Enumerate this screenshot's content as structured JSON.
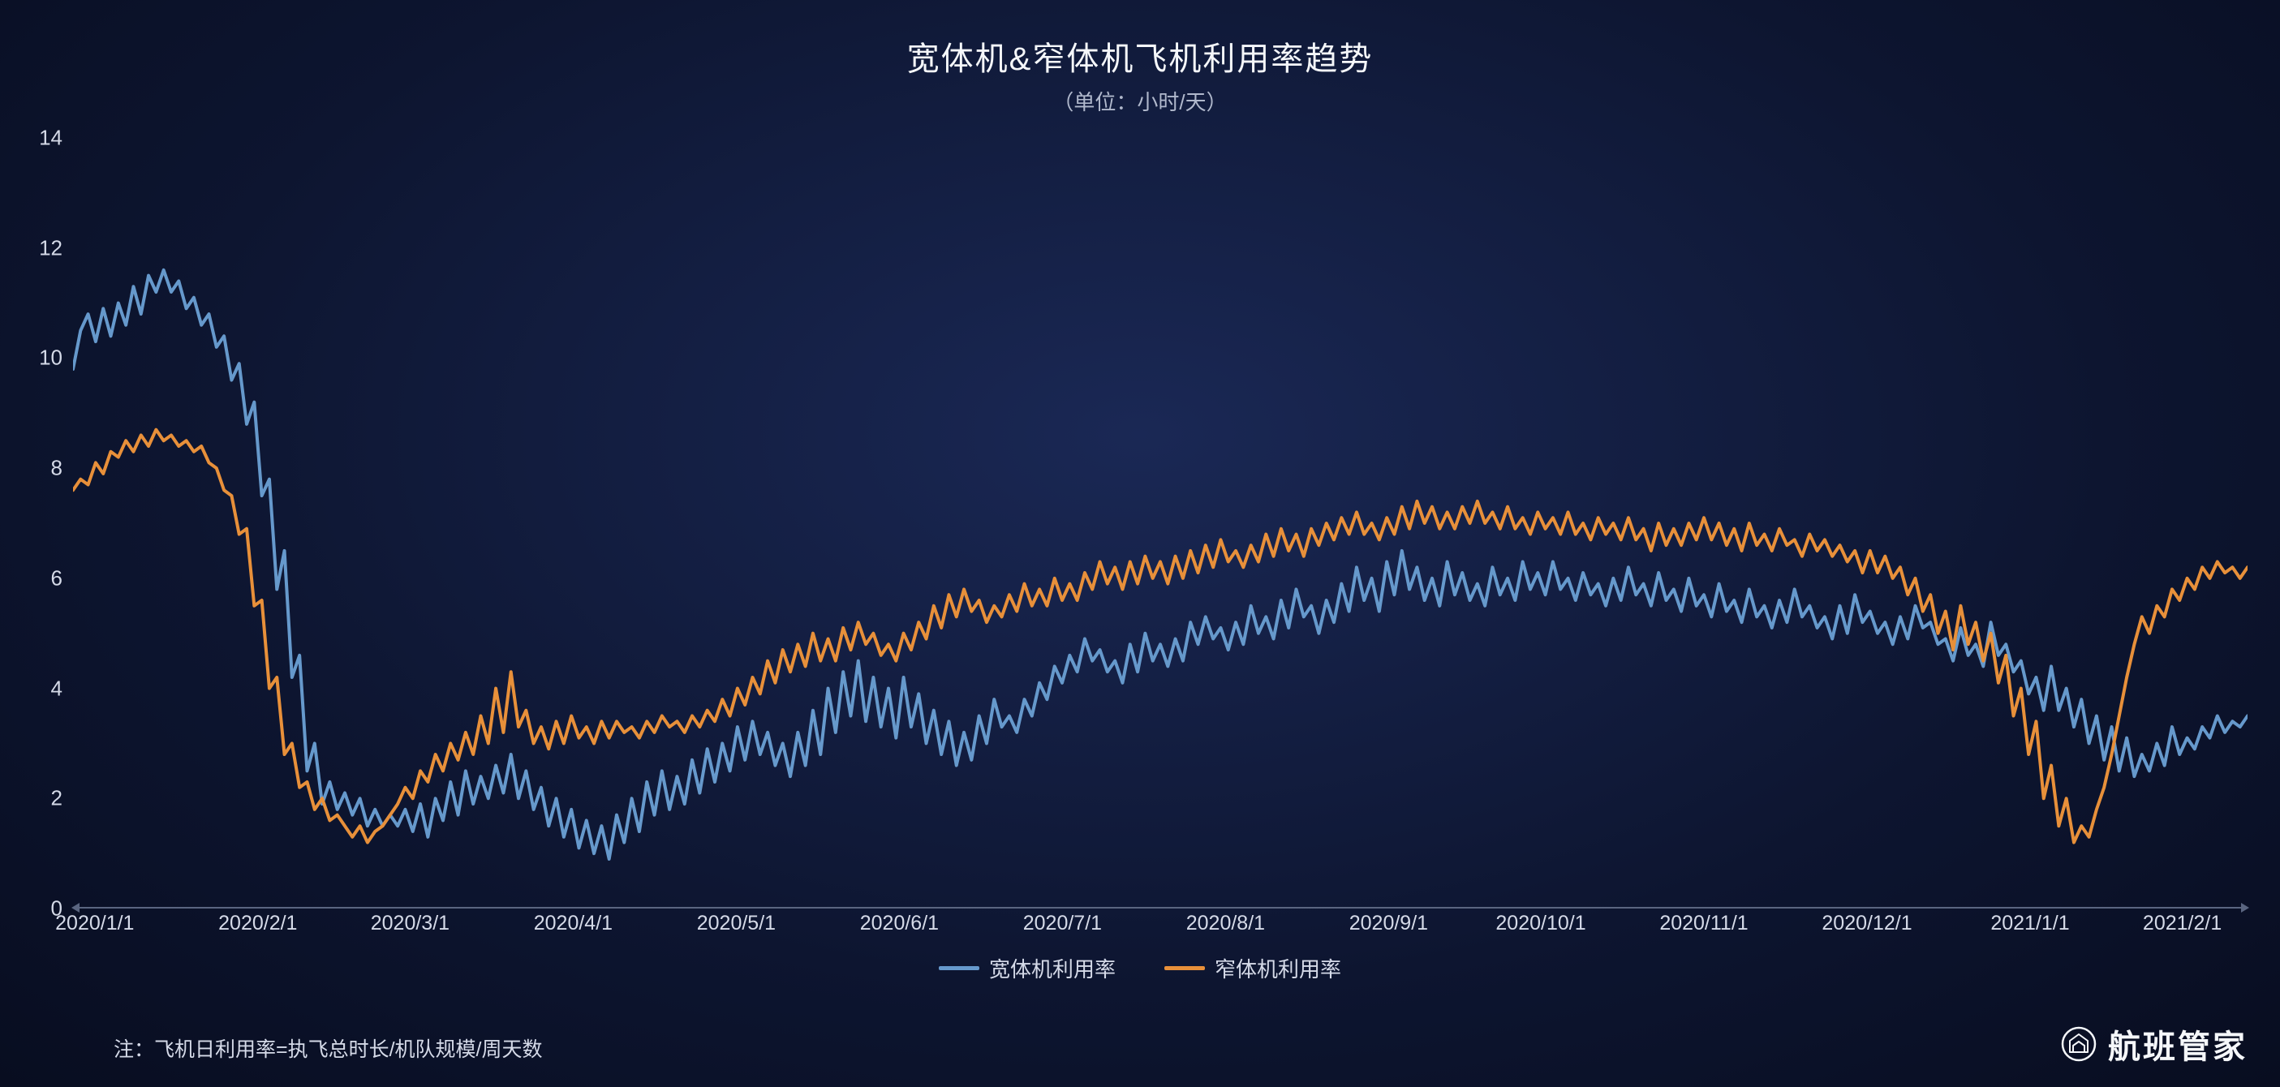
{
  "chart": {
    "type": "line",
    "title": "宽体机&窄体机飞机利用率趋势",
    "subtitle": "（单位：小时/天）",
    "title_fontsize": 40,
    "subtitle_fontsize": 26,
    "background_gradient": [
      "#1a2855",
      "#0d1530",
      "#080d20"
    ],
    "text_color": "#d5dae8",
    "axis_line_color": "#5a6580",
    "y_axis": {
      "min": 0,
      "max": 14,
      "step": 2,
      "ticks": [
        0,
        2,
        4,
        6,
        8,
        10,
        12,
        14
      ],
      "label_fontsize": 26
    },
    "x_axis": {
      "labels": [
        "2020/1/1",
        "2020/2/1",
        "2020/3/1",
        "2020/4/1",
        "2020/5/1",
        "2020/6/1",
        "2020/7/1",
        "2020/8/1",
        "2020/9/1",
        "2020/10/1",
        "2020/11/1",
        "2020/12/1",
        "2021/1/1",
        "2021/2/1"
      ],
      "positions_pct": [
        1,
        8.5,
        15.5,
        23,
        30.5,
        38,
        45.5,
        53,
        60.5,
        67.5,
        75,
        82.5,
        90,
        97
      ],
      "label_fontsize": 25
    },
    "series": [
      {
        "name": "宽体机利用率",
        "color": "#6699cc",
        "line_width": 4,
        "data": [
          9.8,
          10.5,
          10.8,
          10.3,
          10.9,
          10.4,
          11.0,
          10.6,
          11.3,
          10.8,
          11.5,
          11.2,
          11.6,
          11.2,
          11.4,
          10.9,
          11.1,
          10.6,
          10.8,
          10.2,
          10.4,
          9.6,
          9.9,
          8.8,
          9.2,
          7.5,
          7.8,
          5.8,
          6.5,
          4.2,
          4.6,
          2.5,
          3.0,
          1.9,
          2.3,
          1.8,
          2.1,
          1.7,
          2.0,
          1.5,
          1.8,
          1.5,
          1.7,
          1.5,
          1.8,
          1.4,
          1.9,
          1.3,
          2.0,
          1.6,
          2.3,
          1.7,
          2.5,
          1.9,
          2.4,
          2.0,
          2.6,
          2.1,
          2.8,
          2.0,
          2.5,
          1.8,
          2.2,
          1.5,
          2.0,
          1.3,
          1.8,
          1.1,
          1.6,
          1.0,
          1.5,
          0.9,
          1.7,
          1.2,
          2.0,
          1.4,
          2.3,
          1.7,
          2.5,
          1.8,
          2.4,
          1.9,
          2.7,
          2.1,
          2.9,
          2.3,
          3.0,
          2.5,
          3.3,
          2.7,
          3.4,
          2.8,
          3.2,
          2.6,
          3.0,
          2.4,
          3.2,
          2.6,
          3.6,
          2.8,
          4.0,
          3.2,
          4.3,
          3.5,
          4.5,
          3.4,
          4.2,
          3.3,
          4.0,
          3.1,
          4.2,
          3.3,
          3.9,
          3.0,
          3.6,
          2.8,
          3.4,
          2.6,
          3.2,
          2.7,
          3.5,
          3.0,
          3.8,
          3.3,
          3.5,
          3.2,
          3.8,
          3.5,
          4.1,
          3.8,
          4.4,
          4.1,
          4.6,
          4.3,
          4.9,
          4.5,
          4.7,
          4.3,
          4.5,
          4.1,
          4.8,
          4.3,
          5.0,
          4.5,
          4.8,
          4.4,
          4.9,
          4.5,
          5.2,
          4.8,
          5.3,
          4.9,
          5.1,
          4.7,
          5.2,
          4.8,
          5.5,
          5.0,
          5.3,
          4.9,
          5.6,
          5.1,
          5.8,
          5.3,
          5.5,
          5.0,
          5.6,
          5.2,
          5.9,
          5.4,
          6.2,
          5.6,
          6.0,
          5.4,
          6.3,
          5.7,
          6.5,
          5.8,
          6.2,
          5.6,
          6.0,
          5.5,
          6.3,
          5.7,
          6.1,
          5.6,
          5.9,
          5.5,
          6.2,
          5.7,
          6.0,
          5.6,
          6.3,
          5.8,
          6.1,
          5.7,
          6.3,
          5.8,
          6.0,
          5.6,
          6.1,
          5.7,
          5.9,
          5.5,
          6.0,
          5.6,
          6.2,
          5.7,
          5.9,
          5.5,
          6.1,
          5.6,
          5.8,
          5.4,
          6.0,
          5.5,
          5.7,
          5.3,
          5.9,
          5.4,
          5.6,
          5.2,
          5.8,
          5.3,
          5.5,
          5.1,
          5.6,
          5.2,
          5.8,
          5.3,
          5.5,
          5.1,
          5.3,
          4.9,
          5.5,
          5.0,
          5.7,
          5.2,
          5.4,
          5.0,
          5.2,
          4.8,
          5.3,
          4.9,
          5.5,
          5.1,
          5.2,
          4.8,
          4.9,
          4.5,
          5.1,
          4.6,
          4.8,
          4.4,
          5.2,
          4.6,
          4.8,
          4.3,
          4.5,
          3.9,
          4.2,
          3.6,
          4.4,
          3.6,
          4.0,
          3.3,
          3.8,
          3.0,
          3.5,
          2.7,
          3.3,
          2.5,
          3.1,
          2.4,
          2.8,
          2.5,
          3.0,
          2.6,
          3.3,
          2.8,
          3.1,
          2.9,
          3.3,
          3.1,
          3.5,
          3.2,
          3.4,
          3.3,
          3.5
        ]
      },
      {
        "name": "窄体机利用率",
        "color": "#e8903a",
        "line_width": 4,
        "data": [
          7.6,
          7.8,
          7.7,
          8.1,
          7.9,
          8.3,
          8.2,
          8.5,
          8.3,
          8.6,
          8.4,
          8.7,
          8.5,
          8.6,
          8.4,
          8.5,
          8.3,
          8.4,
          8.1,
          8.0,
          7.6,
          7.5,
          6.8,
          6.9,
          5.5,
          5.6,
          4.0,
          4.2,
          2.8,
          3.0,
          2.2,
          2.3,
          1.8,
          2.0,
          1.6,
          1.7,
          1.5,
          1.3,
          1.5,
          1.2,
          1.4,
          1.5,
          1.7,
          1.9,
          2.2,
          2.0,
          2.5,
          2.3,
          2.8,
          2.5,
          3.0,
          2.7,
          3.2,
          2.8,
          3.5,
          3.0,
          4.0,
          3.2,
          4.3,
          3.3,
          3.6,
          3.0,
          3.3,
          2.9,
          3.4,
          3.0,
          3.5,
          3.1,
          3.3,
          3.0,
          3.4,
          3.1,
          3.4,
          3.2,
          3.3,
          3.1,
          3.4,
          3.2,
          3.5,
          3.3,
          3.4,
          3.2,
          3.5,
          3.3,
          3.6,
          3.4,
          3.8,
          3.5,
          4.0,
          3.7,
          4.2,
          3.9,
          4.5,
          4.1,
          4.7,
          4.3,
          4.8,
          4.4,
          5.0,
          4.5,
          4.9,
          4.5,
          5.1,
          4.7,
          5.2,
          4.8,
          5.0,
          4.6,
          4.8,
          4.5,
          5.0,
          4.7,
          5.2,
          4.9,
          5.5,
          5.1,
          5.7,
          5.3,
          5.8,
          5.4,
          5.6,
          5.2,
          5.5,
          5.3,
          5.7,
          5.4,
          5.9,
          5.5,
          5.8,
          5.5,
          6.0,
          5.6,
          5.9,
          5.6,
          6.1,
          5.8,
          6.3,
          5.9,
          6.2,
          5.8,
          6.3,
          5.9,
          6.4,
          6.0,
          6.3,
          5.9,
          6.4,
          6.0,
          6.5,
          6.1,
          6.6,
          6.2,
          6.7,
          6.3,
          6.5,
          6.2,
          6.6,
          6.3,
          6.8,
          6.4,
          6.9,
          6.5,
          6.8,
          6.4,
          6.9,
          6.6,
          7.0,
          6.7,
          7.1,
          6.8,
          7.2,
          6.8,
          7.0,
          6.7,
          7.1,
          6.8,
          7.3,
          6.9,
          7.4,
          7.0,
          7.3,
          6.9,
          7.2,
          6.9,
          7.3,
          7.0,
          7.4,
          7.0,
          7.2,
          6.9,
          7.3,
          6.9,
          7.1,
          6.8,
          7.2,
          6.9,
          7.1,
          6.8,
          7.2,
          6.8,
          7.0,
          6.7,
          7.1,
          6.8,
          7.0,
          6.7,
          7.1,
          6.7,
          6.9,
          6.5,
          7.0,
          6.6,
          6.9,
          6.6,
          7.0,
          6.7,
          7.1,
          6.7,
          7.0,
          6.6,
          6.9,
          6.5,
          7.0,
          6.6,
          6.8,
          6.5,
          6.9,
          6.6,
          6.7,
          6.4,
          6.8,
          6.5,
          6.7,
          6.4,
          6.6,
          6.3,
          6.5,
          6.1,
          6.5,
          6.1,
          6.4,
          6.0,
          6.2,
          5.7,
          6.0,
          5.4,
          5.7,
          5.0,
          5.4,
          4.7,
          5.5,
          4.8,
          5.2,
          4.5,
          5.0,
          4.1,
          4.6,
          3.5,
          4.0,
          2.8,
          3.4,
          2.0,
          2.6,
          1.5,
          2.0,
          1.2,
          1.5,
          1.3,
          1.8,
          2.2,
          2.8,
          3.5,
          4.2,
          4.8,
          5.3,
          5.0,
          5.5,
          5.3,
          5.8,
          5.6,
          6.0,
          5.8,
          6.2,
          6.0,
          6.3,
          6.1,
          6.2,
          6.0,
          6.2
        ]
      }
    ],
    "legend": {
      "position": "bottom-center",
      "fontsize": 26,
      "swatch_width": 50,
      "items": [
        "宽体机利用率",
        "窄体机利用率"
      ]
    },
    "footnote": "注：飞机日利用率=执飞总时长/机队规模/周天数",
    "footnote_fontsize": 25,
    "brand": {
      "text": "航班管家",
      "fontsize": 40,
      "icon_color": "#f5f7fa"
    }
  }
}
